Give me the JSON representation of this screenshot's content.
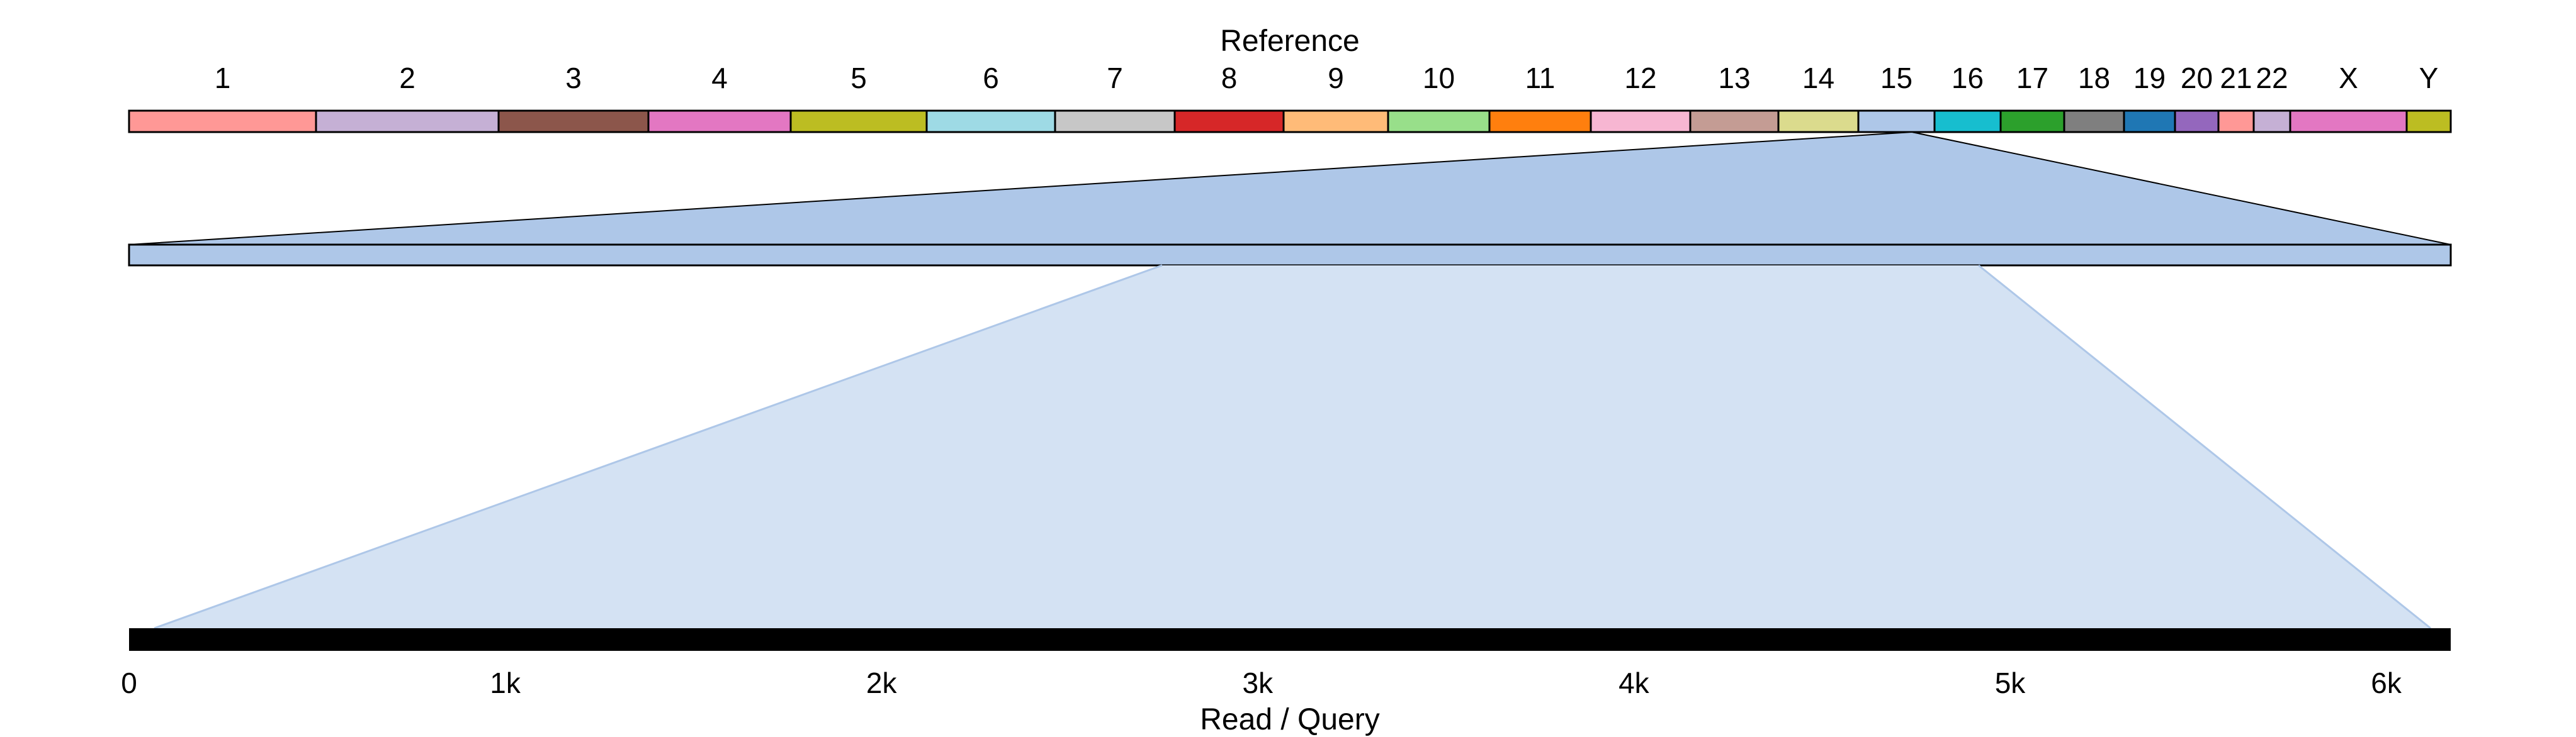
{
  "reference_label": "Reference",
  "query_label": "Read / Query",
  "chromosomes": [
    {
      "name": "1",
      "color": "#ff9896"
    },
    {
      "name": "2",
      "color": "#c5b0d5"
    },
    {
      "name": "3",
      "color": "#8c564b"
    },
    {
      "name": "4",
      "color": "#e377c2"
    },
    {
      "name": "5",
      "color": "#bcbd22"
    },
    {
      "name": "6",
      "color": "#9edae5"
    },
    {
      "name": "7",
      "color": "#c7c7c7"
    },
    {
      "name": "8",
      "color": "#d62728"
    },
    {
      "name": "9",
      "color": "#ffbb78"
    },
    {
      "name": "10",
      "color": "#98df8a"
    },
    {
      "name": "11",
      "color": "#ff7f0e"
    },
    {
      "name": "12",
      "color": "#f7b6d2"
    },
    {
      "name": "13",
      "color": "#c49c94"
    },
    {
      "name": "14",
      "color": "#dbdb8d"
    },
    {
      "name": "15",
      "color": "#aec7e8"
    },
    {
      "name": "16",
      "color": "#17becf"
    },
    {
      "name": "17",
      "color": "#2ca02c"
    },
    {
      "name": "18",
      "color": "#7f7f7f"
    },
    {
      "name": "19",
      "color": "#1f77b4"
    },
    {
      "name": "20",
      "color": "#9467bd"
    },
    {
      "name": "21",
      "color": "#ff9896"
    },
    {
      "name": "22",
      "color": "#c5b0d5"
    },
    {
      "name": "X",
      "color": "#e377c2"
    },
    {
      "name": "Y",
      "color": "#bcbd22"
    }
  ],
  "highlighted_chromosome": "15",
  "zoom_colors": {
    "region": "#aec7e8",
    "alignment": "#d4e2f3",
    "read": "#000000"
  },
  "query_axis": {
    "ticks": [
      "0",
      "1k",
      "2k",
      "3k",
      "4k",
      "5k",
      "6k"
    ],
    "tick_values": [
      0,
      1000,
      2000,
      3000,
      4000,
      5000,
      6000
    ]
  }
}
